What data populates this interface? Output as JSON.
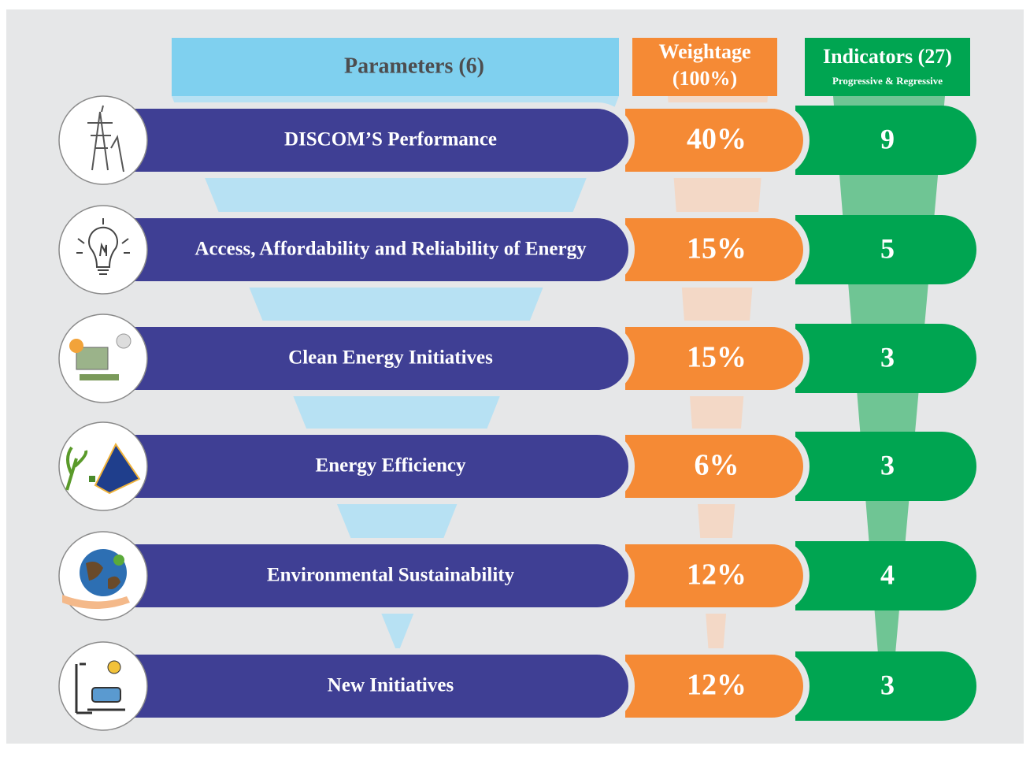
{
  "header": {
    "parameters": "Parameters (6)",
    "weightage": [
      "Weightage",
      "(100%)"
    ],
    "indicators": "Indicators (27)",
    "indicators_note": "Progressive & Regressive"
  },
  "rows": [
    {
      "parameter": "DISCOM’S Performance",
      "weightage": "40%",
      "indicators": "9"
    },
    {
      "parameter": "Access, Affordability and Reliability of Energy",
      "weightage": "15%",
      "indicators": "5"
    },
    {
      "parameter": "Clean Energy Initiatives",
      "weightage": "15%",
      "indicators": "3"
    },
    {
      "parameter": "Energy Efficiency",
      "weightage": "6%",
      "indicators": "3"
    },
    {
      "parameter": "Environmental Sustainability",
      "weightage": "12%",
      "indicators": "4"
    },
    {
      "parameter": "New Initiatives",
      "weightage": "12%",
      "indicators": "3"
    }
  ]
}
